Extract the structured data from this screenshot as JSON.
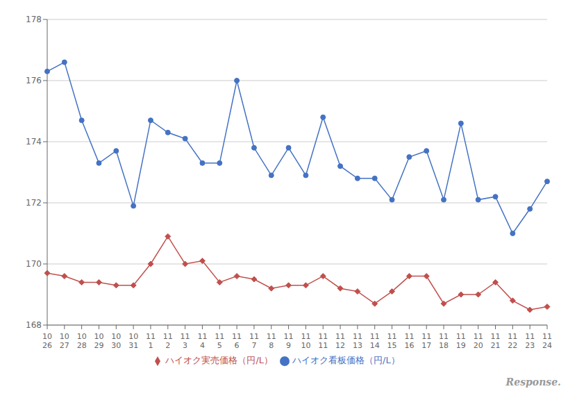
{
  "chart_data": {
    "type": "line",
    "categories": [
      "10\n26",
      "10\n27",
      "10\n28",
      "10\n29",
      "10\n30",
      "10\n31",
      "11\n1",
      "11\n2",
      "11\n3",
      "11\n4",
      "11\n5",
      "11\n6",
      "11\n7",
      "11\n8",
      "11\n9",
      "11\n10",
      "11\n11",
      "11\n12",
      "11\n13",
      "11\n14",
      "11\n15",
      "11\n16",
      "11\n17",
      "11\n18",
      "11\n19",
      "11\n20",
      "11\n21",
      "11\n22",
      "11\n23",
      "11\n24"
    ],
    "series": [
      {
        "name": "ハイオク看板価格（円/L）",
        "color": "#4472C4",
        "marker": "circle",
        "values": [
          176.3,
          176.6,
          174.7,
          173.3,
          173.7,
          171.9,
          174.7,
          174.3,
          174.1,
          173.3,
          173.3,
          176.0,
          173.8,
          172.9,
          173.8,
          172.9,
          174.8,
          173.2,
          172.8,
          172.8,
          172.1,
          173.5,
          173.7,
          172.1,
          174.6,
          172.1,
          172.2,
          171.0,
          171.8,
          172.7
        ]
      },
      {
        "name": "ハイオク実売価格（円/L）",
        "color": "#C0504D",
        "marker": "diamond",
        "values": [
          169.7,
          169.6,
          169.4,
          169.4,
          169.3,
          169.3,
          170.0,
          170.9,
          170.0,
          170.1,
          169.4,
          169.6,
          169.5,
          169.2,
          169.3,
          169.3,
          169.6,
          169.2,
          169.1,
          168.7,
          169.1,
          169.6,
          169.6,
          168.7,
          169.0,
          169.0,
          169.4,
          168.8,
          168.5,
          168.6
        ]
      }
    ],
    "ylim": [
      168,
      178
    ],
    "yticks": [
      168,
      170,
      172,
      174,
      176,
      178
    ],
    "grid": true,
    "legend": "bottom",
    "annotations": [
      "Response."
    ]
  }
}
